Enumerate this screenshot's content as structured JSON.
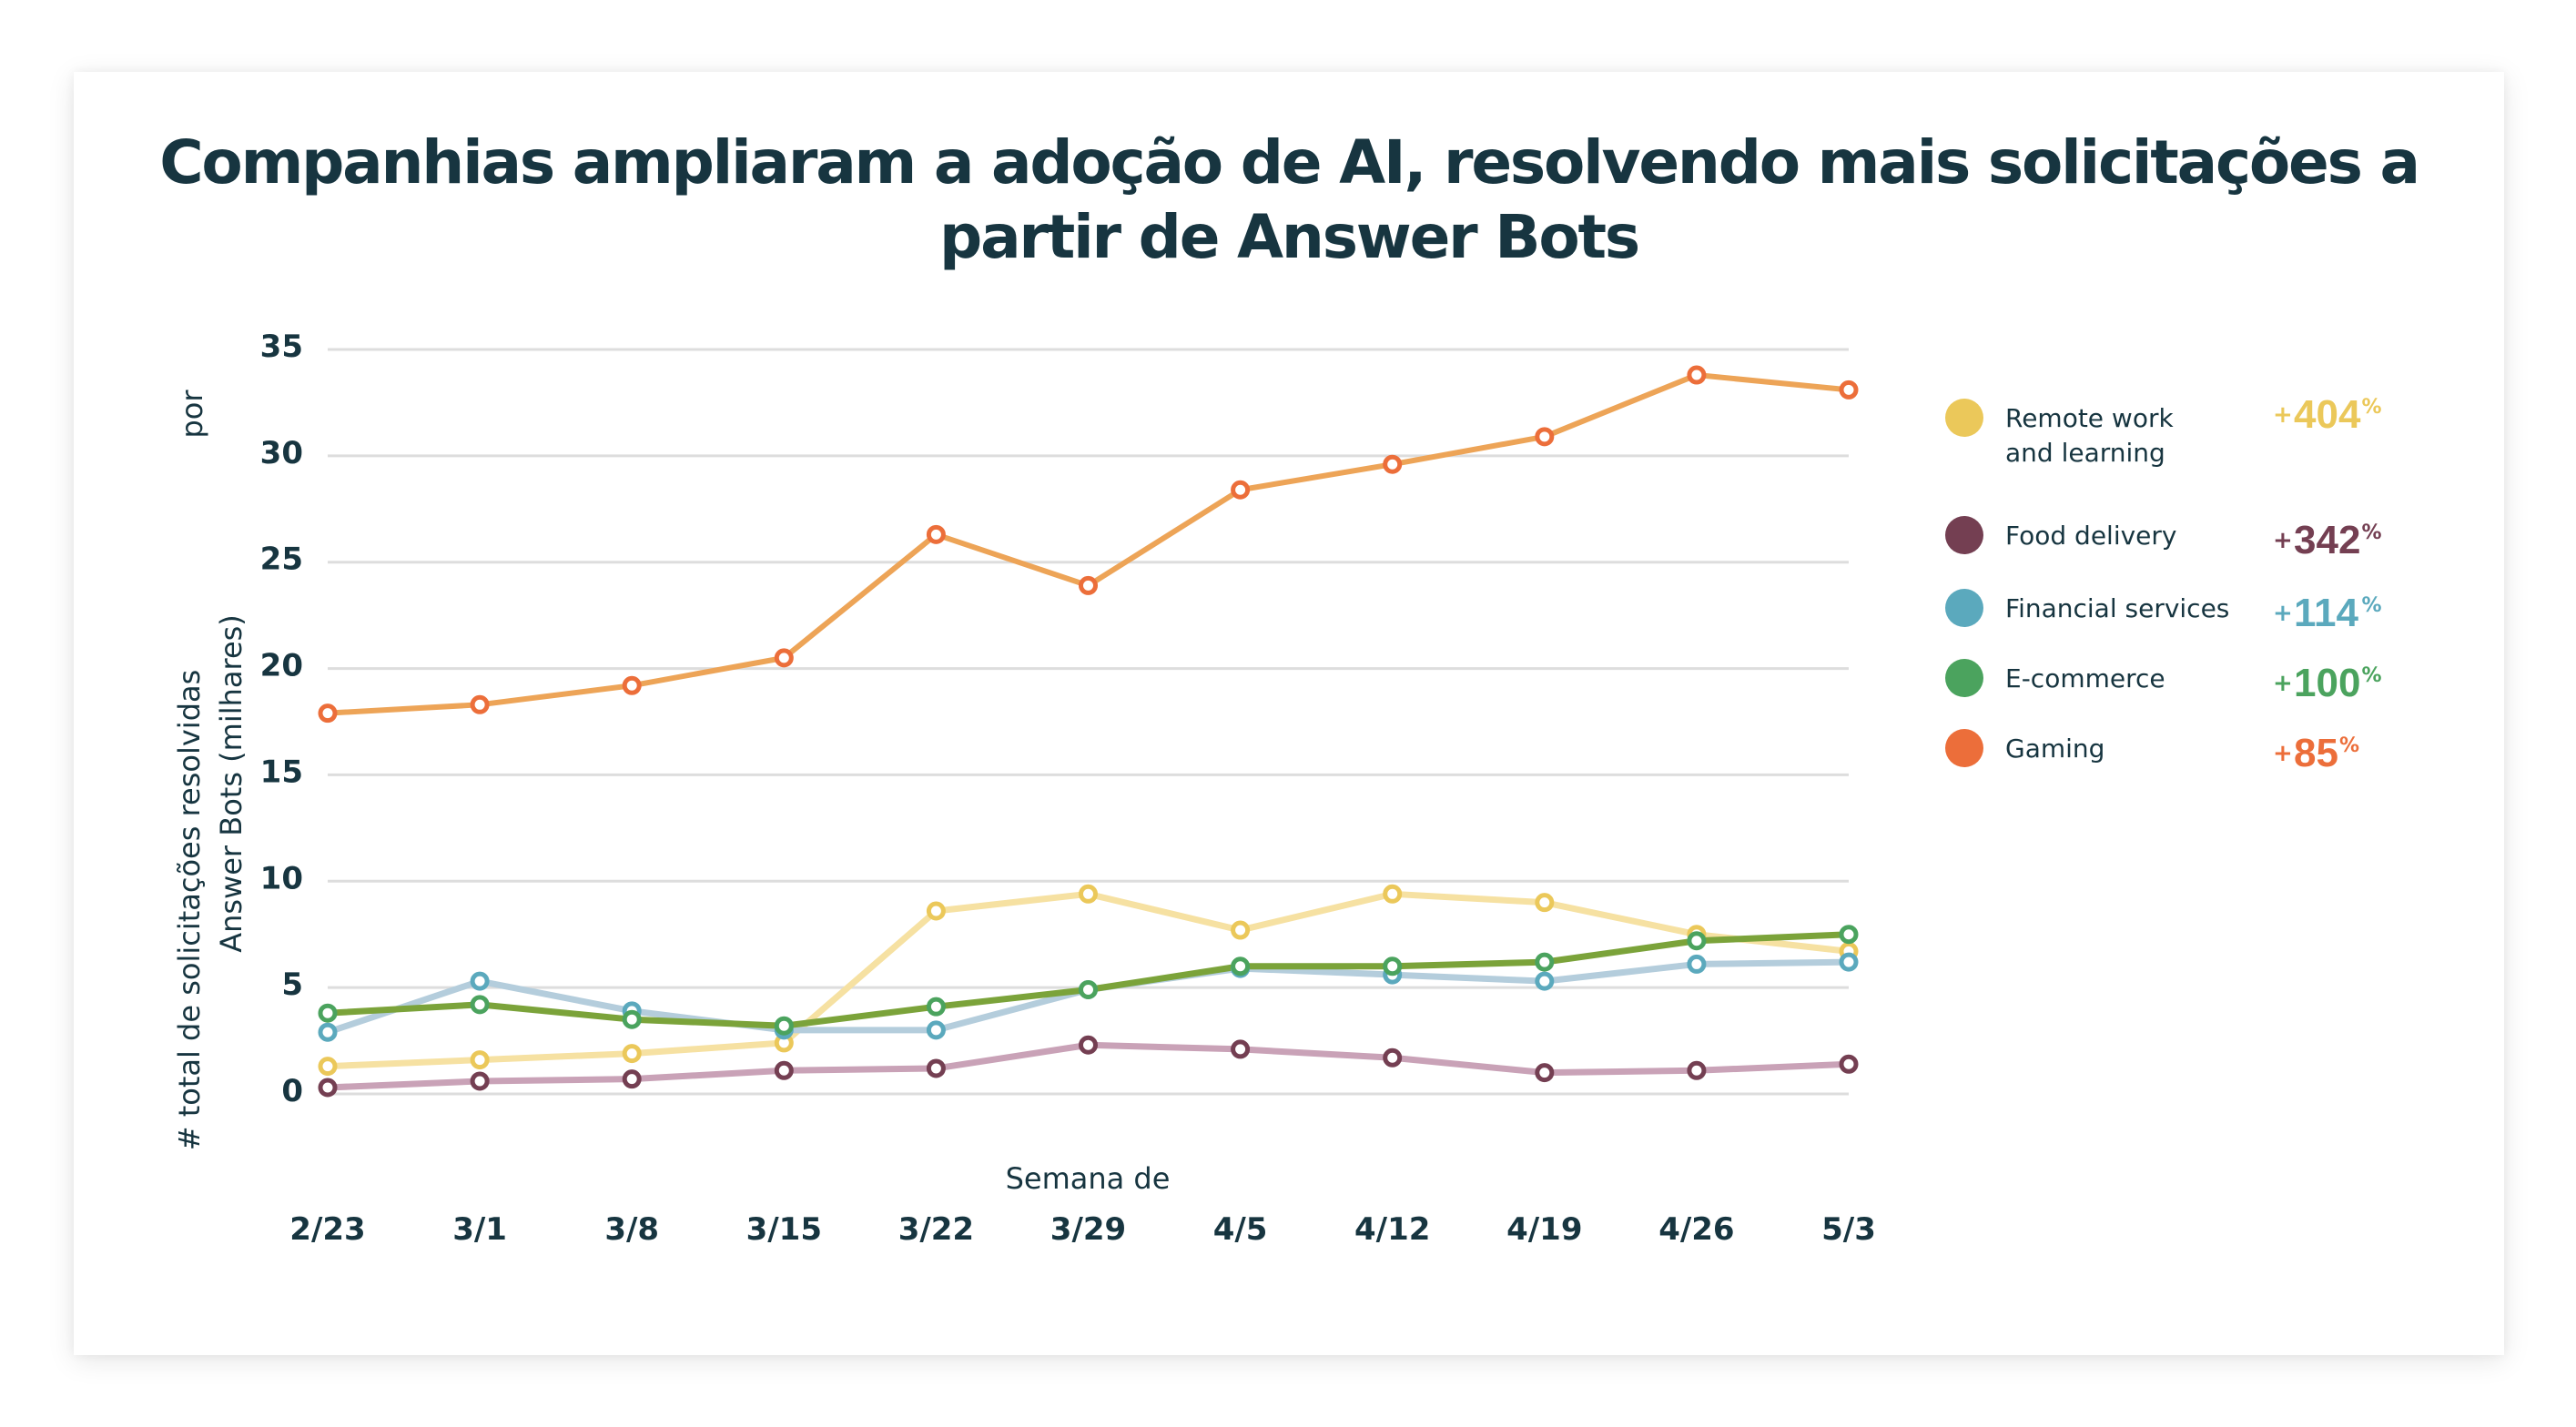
{
  "chart_data": {
    "type": "line",
    "title": "Companhias ampliaram a adoção de AI, resolvendo mais solicitações a partir de Answer Bots",
    "title_lines": [
      "Companhias ampliaram a adoção de AI, resolvendo mais solicitações a",
      "partir de Answer Bots"
    ],
    "xlabel": "Semana de",
    "ylabel_lines": [
      "# total de solicitações resolvidas",
      "Answer Bots (milhares)",
      "por"
    ],
    "x": [
      "2/23",
      "3/1",
      "3/8",
      "3/15",
      "3/22",
      "3/29",
      "4/5",
      "4/12",
      "4/19",
      "4/26",
      "5/3"
    ],
    "ylim": [
      0,
      35
    ],
    "yticks": [
      0,
      5,
      10,
      15,
      20,
      25,
      30,
      35
    ],
    "grid": true,
    "legend_position": "right",
    "series": [
      {
        "name": "Remote work and learning",
        "label_lines": [
          "Remote work",
          "and learning"
        ],
        "change": {
          "plus": "+",
          "number": "404",
          "percent": "%"
        },
        "color": "#EBC85A",
        "line_color": "#F6E1A2",
        "values": [
          1.3,
          1.6,
          1.9,
          2.4,
          8.6,
          9.4,
          7.7,
          9.4,
          9.0,
          7.5,
          6.7
        ]
      },
      {
        "name": "Food delivery",
        "label_lines": [
          "Food delivery"
        ],
        "change": {
          "plus": "+",
          "number": "342",
          "percent": "%"
        },
        "color": "#743F52",
        "line_color": "#C9A2B7",
        "values": [
          0.3,
          0.6,
          0.7,
          1.1,
          1.2,
          2.3,
          2.1,
          1.7,
          1.0,
          1.1,
          1.4
        ]
      },
      {
        "name": "Financial services",
        "label_lines": [
          "Financial services"
        ],
        "change": {
          "plus": "+",
          "number": "114",
          "percent": "%"
        },
        "color": "#5BA9BD",
        "line_color": "#B4CDDC",
        "values": [
          2.9,
          5.3,
          3.9,
          3.0,
          3.0,
          4.9,
          5.9,
          5.6,
          5.3,
          6.1,
          6.2
        ]
      },
      {
        "name": "E-commerce",
        "label_lines": [
          "E-commerce"
        ],
        "change": {
          "plus": "+",
          "number": "100",
          "percent": "%"
        },
        "color": "#4BA35E",
        "line_color": "#7BA33A",
        "values": [
          3.8,
          4.2,
          3.5,
          3.2,
          4.1,
          4.9,
          6.0,
          6.0,
          6.2,
          7.2,
          7.5
        ]
      },
      {
        "name": "Gaming",
        "label_lines": [
          "Gaming"
        ],
        "change": {
          "plus": "+",
          "number": "85",
          "percent": "%"
        },
        "color": "#EC6E3A",
        "line_color": "#EDA457",
        "values": [
          17.9,
          18.3,
          19.2,
          20.5,
          26.3,
          23.9,
          28.4,
          29.6,
          30.9,
          33.8,
          33.1
        ]
      }
    ]
  },
  "colors": {
    "text": "#173540",
    "grid": "#DDDDDD",
    "background": "#FFFFFF"
  }
}
